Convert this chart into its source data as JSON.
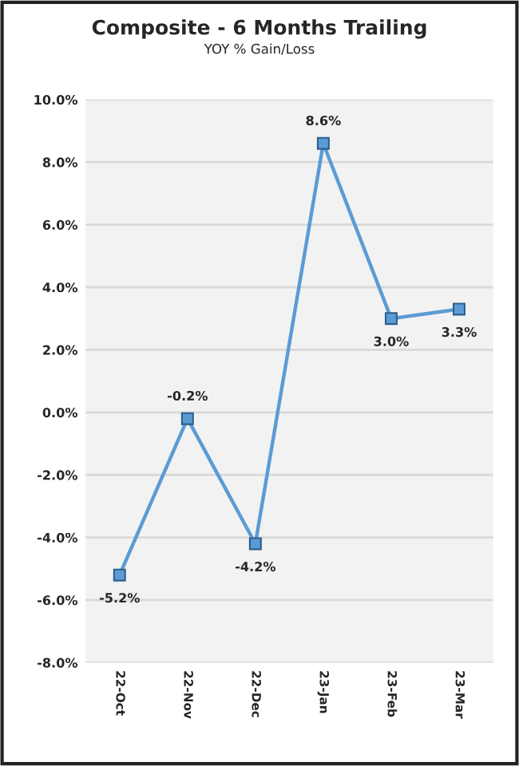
{
  "chart_data": {
    "type": "line",
    "title": "Composite - 6 Months Trailing",
    "subtitle": "YOY % Gain/Loss",
    "categories": [
      "22-Oct",
      "22-Nov",
      "22-Dec",
      "23-Jan",
      "23-Feb",
      "23-Mar"
    ],
    "series": [
      {
        "color": "#5b9bd5",
        "values": [
          -5.2,
          -0.2,
          -4.2,
          8.6,
          3.0,
          3.3
        ],
        "value_labels": [
          "-5.2%",
          "-0.2%",
          "-4.2%",
          "8.6%",
          "3.0%",
          "3.3%"
        ]
      }
    ],
    "ylim": [
      -8,
      10
    ],
    "yticks": [
      {
        "value": -8,
        "label": "-8.0%"
      },
      {
        "value": -6,
        "label": "-6.0%"
      },
      {
        "value": -4,
        "label": "-4.0%"
      },
      {
        "value": -2,
        "label": "-2.0%"
      },
      {
        "value": 0,
        "label": "0.0%"
      },
      {
        "value": 2,
        "label": "2.0%"
      },
      {
        "value": 4,
        "label": "4.0%"
      },
      {
        "value": 6,
        "label": "6.0%"
      },
      {
        "value": 8,
        "label": "8.0%"
      },
      {
        "value": 10,
        "label": "10.0%"
      }
    ],
    "grid": "y",
    "marker": "square",
    "line_style": "solid"
  }
}
